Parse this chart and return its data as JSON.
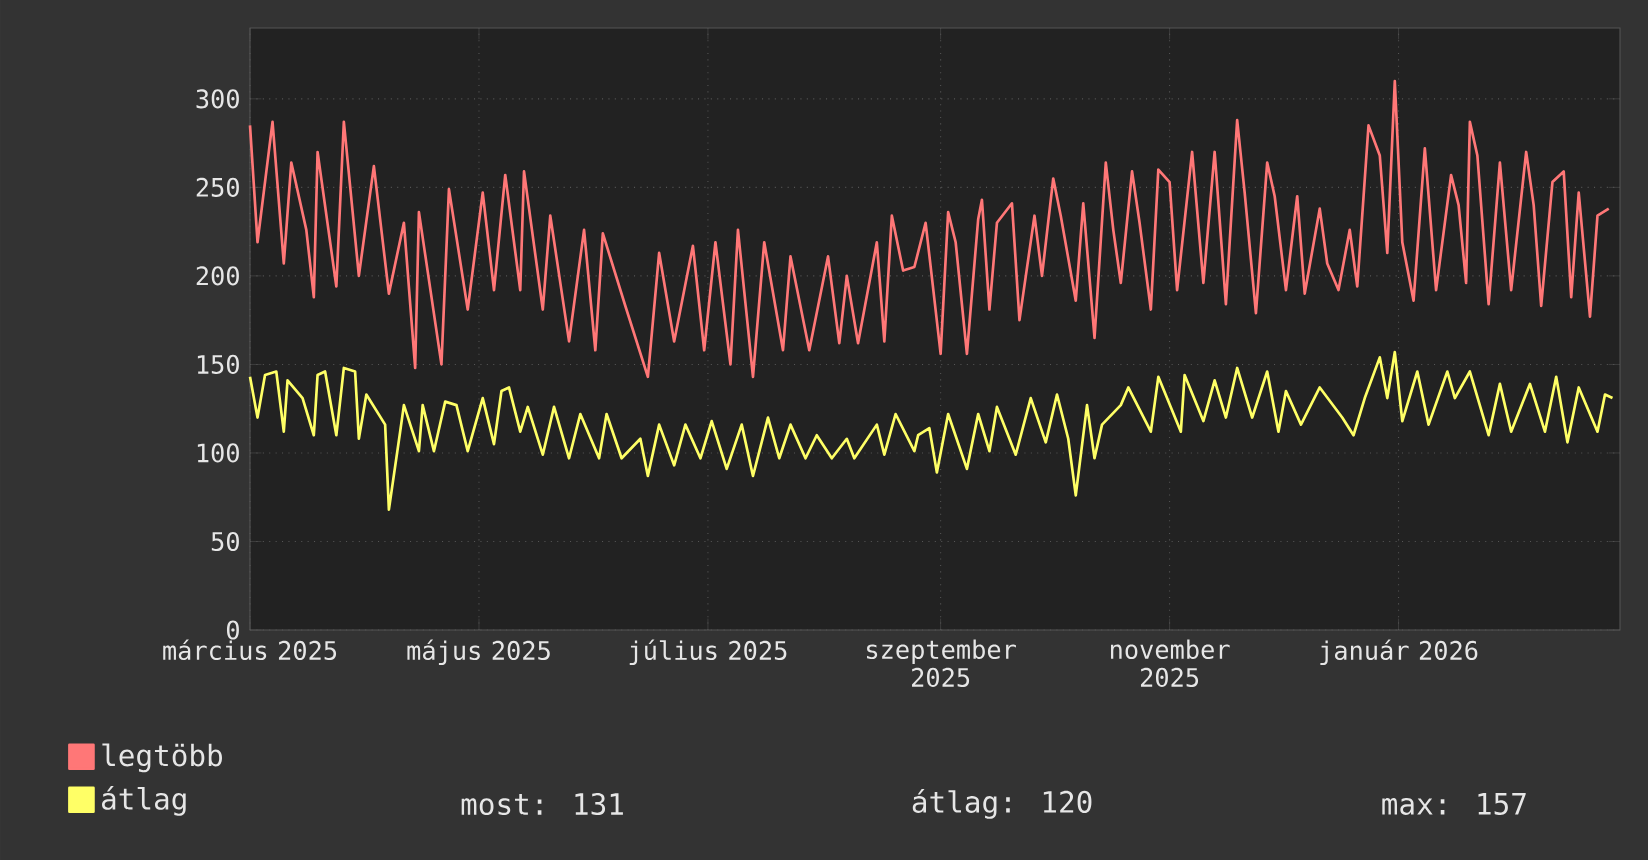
{
  "chart_data": {
    "type": "line",
    "legend": "bottom",
    "grid": true,
    "ylim": [
      0,
      340
    ],
    "yticks": [
      0,
      50,
      100,
      150,
      200,
      250,
      300
    ],
    "xlim": [
      "2025-03-01",
      "2026-03-01"
    ],
    "xticks": [
      {
        "value": "2025-03-01",
        "label": "március 2025"
      },
      {
        "value": "2025-05-01",
        "label": "május 2025"
      },
      {
        "value": "2025-07-01",
        "label": "július 2025"
      },
      {
        "value": "2025-09-01",
        "label": "szeptember 2025"
      },
      {
        "value": "2025-11-01",
        "label": "november 2025"
      },
      {
        "value": "2026-01-01",
        "label": "január 2026"
      }
    ],
    "annotations": [
      "most: 131",
      "átlag: 120",
      "max: 157"
    ],
    "series": [
      {
        "name": "legtöbb",
        "color": "#ff7777",
        "x": [
          "2025-03-01",
          "2025-03-03",
          "2025-03-07",
          "2025-03-10",
          "2025-03-12",
          "2025-03-16",
          "2025-03-18",
          "2025-03-19",
          "2025-03-24",
          "2025-03-26",
          "2025-03-30",
          "2025-04-03",
          "2025-04-07",
          "2025-04-11",
          "2025-04-14",
          "2025-04-15",
          "2025-04-21",
          "2025-04-23",
          "2025-04-28",
          "2025-05-02",
          "2025-05-05",
          "2025-05-08",
          "2025-05-12",
          "2025-05-13",
          "2025-05-18",
          "2025-05-20",
          "2025-05-25",
          "2025-05-29",
          "2025-06-01",
          "2025-06-03",
          "2025-06-09",
          "2025-06-15",
          "2025-06-18",
          "2025-06-22",
          "2025-06-27",
          "2025-06-30",
          "2025-07-03",
          "2025-07-07",
          "2025-07-09",
          "2025-07-13",
          "2025-07-16",
          "2025-07-21",
          "2025-07-23",
          "2025-07-28",
          "2025-08-02",
          "2025-08-05",
          "2025-08-07",
          "2025-08-10",
          "2025-08-15",
          "2025-08-17",
          "2025-08-19",
          "2025-08-22",
          "2025-08-25",
          "2025-08-28",
          "2025-09-01",
          "2025-09-03",
          "2025-09-05",
          "2025-09-08",
          "2025-09-11",
          "2025-09-12",
          "2025-09-14",
          "2025-09-16",
          "2025-09-20",
          "2025-09-22",
          "2025-09-26",
          "2025-09-28",
          "2025-10-01",
          "2025-10-03",
          "2025-10-07",
          "2025-10-09",
          "2025-10-12",
          "2025-10-15",
          "2025-10-17",
          "2025-10-19",
          "2025-10-22",
          "2025-10-24",
          "2025-10-27",
          "2025-10-29",
          "2025-11-01",
          "2025-11-03",
          "2025-11-07",
          "2025-11-10",
          "2025-11-13",
          "2025-11-16",
          "2025-11-19",
          "2025-11-21",
          "2025-11-24",
          "2025-11-27",
          "2025-11-29",
          "2025-12-02",
          "2025-12-05",
          "2025-12-07",
          "2025-12-11",
          "2025-12-13",
          "2025-12-16",
          "2025-12-19",
          "2025-12-21",
          "2025-12-24",
          "2025-12-27",
          "2025-12-29",
          "2025-12-31",
          "2026-01-02",
          "2026-01-05",
          "2026-01-08",
          "2026-01-11",
          "2026-01-15",
          "2026-01-17",
          "2026-01-19",
          "2026-01-20",
          "2026-01-22",
          "2026-01-25",
          "2026-01-28",
          "2026-01-31",
          "2026-02-04",
          "2026-02-06",
          "2026-02-08",
          "2026-02-11",
          "2026-02-14",
          "2026-02-16",
          "2026-02-18",
          "2026-02-21",
          "2026-02-23",
          "2026-02-26"
        ],
        "values": [
          285,
          219,
          287,
          207,
          264,
          226,
          188,
          270,
          194,
          287,
          200,
          262,
          190,
          230,
          148,
          236,
          150,
          249,
          181,
          247,
          192,
          257,
          192,
          259,
          181,
          234,
          163,
          226,
          158,
          224,
          183,
          143,
          213,
          163,
          217,
          158,
          219,
          150,
          226,
          143,
          219,
          158,
          211,
          158,
          211,
          162,
          200,
          162,
          219,
          163,
          234,
          203,
          205,
          230,
          156,
          236,
          219,
          156,
          232,
          243,
          181,
          230,
          241,
          175,
          234,
          200,
          255,
          234,
          186,
          241,
          165,
          264,
          226,
          196,
          259,
          230,
          181,
          260,
          253,
          192,
          270,
          196,
          270,
          184,
          288,
          247,
          179,
          264,
          245,
          192,
          245,
          190,
          238,
          207,
          192,
          226,
          194,
          285,
          268,
          213,
          310,
          219,
          186,
          272,
          192,
          257,
          240,
          196,
          287,
          268,
          184,
          264,
          192,
          270,
          240,
          183,
          253,
          259,
          188,
          247,
          177,
          234,
          238
        ]
      },
      {
        "name": "átlag",
        "color": "#ffff66",
        "x": [
          "2025-03-01",
          "2025-03-03",
          "2025-03-05",
          "2025-03-08",
          "2025-03-10",
          "2025-03-11",
          "2025-03-15",
          "2025-03-18",
          "2025-03-19",
          "2025-03-21",
          "2025-03-24",
          "2025-03-26",
          "2025-03-29",
          "2025-03-30",
          "2025-04-01",
          "2025-04-06",
          "2025-04-07",
          "2025-04-10",
          "2025-04-11",
          "2025-04-15",
          "2025-04-16",
          "2025-04-19",
          "2025-04-22",
          "2025-04-25",
          "2025-04-28",
          "2025-05-02",
          "2025-05-05",
          "2025-05-07",
          "2025-05-09",
          "2025-05-12",
          "2025-05-14",
          "2025-05-18",
          "2025-05-21",
          "2025-05-25",
          "2025-05-28",
          "2025-06-02",
          "2025-06-04",
          "2025-06-08",
          "2025-06-13",
          "2025-06-15",
          "2025-06-18",
          "2025-06-22",
          "2025-06-25",
          "2025-06-29",
          "2025-07-02",
          "2025-07-06",
          "2025-07-10",
          "2025-07-13",
          "2025-07-17",
          "2025-07-20",
          "2025-07-23",
          "2025-07-27",
          "2025-07-30",
          "2025-08-03",
          "2025-08-07",
          "2025-08-09",
          "2025-08-15",
          "2025-08-17",
          "2025-08-20",
          "2025-08-25",
          "2025-08-26",
          "2025-08-29",
          "2025-08-31",
          "2025-09-03",
          "2025-09-08",
          "2025-09-11",
          "2025-09-14",
          "2025-09-16",
          "2025-09-21",
          "2025-09-25",
          "2025-09-29",
          "2025-10-02",
          "2025-10-05",
          "2025-10-07",
          "2025-10-10",
          "2025-10-12",
          "2025-10-14",
          "2025-10-19",
          "2025-10-21",
          "2025-10-27",
          "2025-10-29",
          "2025-11-04",
          "2025-11-05",
          "2025-11-10",
          "2025-11-13",
          "2025-11-16",
          "2025-11-19",
          "2025-11-23",
          "2025-11-27",
          "2025-11-30",
          "2025-12-02",
          "2025-12-06",
          "2025-12-11",
          "2025-12-17",
          "2025-12-20",
          "2025-12-23",
          "2025-12-27",
          "2025-12-29",
          "2025-12-31",
          "2026-01-02",
          "2026-01-06",
          "2026-01-09",
          "2026-01-14",
          "2026-01-16",
          "2026-01-20",
          "2026-01-25",
          "2026-01-28",
          "2026-01-31",
          "2026-02-05",
          "2026-02-09",
          "2026-02-12",
          "2026-02-15",
          "2026-02-18",
          "2026-02-23",
          "2026-02-25",
          "2026-02-27"
        ],
        "values": [
          143,
          120,
          144,
          146,
          112,
          141,
          131,
          110,
          144,
          146,
          110,
          148,
          146,
          108,
          133,
          116,
          68,
          112,
          127,
          101,
          127,
          101,
          129,
          127,
          101,
          131,
          105,
          135,
          137,
          112,
          126,
          99,
          126,
          97,
          122,
          97,
          122,
          97,
          108,
          87,
          116,
          93,
          116,
          97,
          118,
          91,
          116,
          87,
          120,
          97,
          116,
          97,
          110,
          97,
          108,
          97,
          116,
          99,
          122,
          101,
          110,
          114,
          89,
          122,
          91,
          122,
          101,
          126,
          99,
          131,
          106,
          133,
          108,
          76,
          127,
          97,
          116,
          127,
          137,
          112,
          143,
          112,
          144,
          118,
          141,
          120,
          148,
          120,
          146,
          112,
          135,
          116,
          137,
          120,
          110,
          131,
          154,
          131,
          157,
          118,
          146,
          116,
          146,
          131,
          146,
          110,
          139,
          112,
          139,
          112,
          143,
          106,
          137,
          112,
          133,
          131
        ]
      }
    ]
  }
}
